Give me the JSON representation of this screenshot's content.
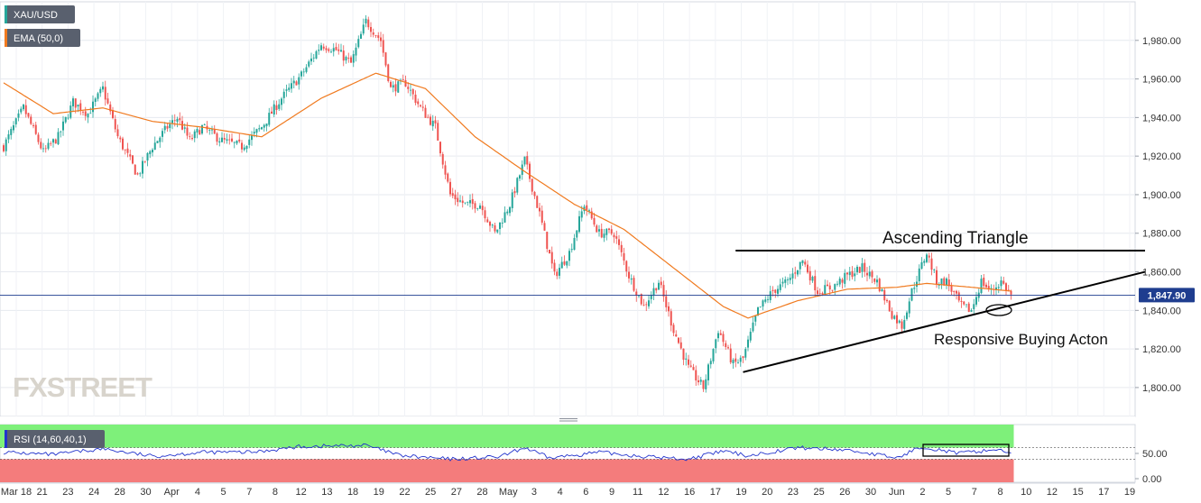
{
  "symbol": "XAU/USD",
  "ema_label": "EMA (50,0)",
  "rsi_label": "RSI (14,60,40,1)",
  "last_price": "1,847.90",
  "watermark": "FXSTREET",
  "annotations": {
    "triangle": "Ascending Triangle",
    "buying": "Responsive Buying Acton"
  },
  "colors": {
    "up": "#26a69a",
    "down": "#ef5350",
    "ema": "#f07a1f",
    "last_price": "#1f3d8f",
    "rsi_line": "#2233cc",
    "rsi_overbought": "#7ef07a",
    "rsi_oversold": "#f47c7c"
  },
  "chart_data": [
    {
      "type": "candlestick",
      "series": [
        {
          "name": "XAU/USD",
          "close_path": [
            {
              "t": 0,
              "v": 1925
            },
            {
              "t": 8,
              "v": 1945
            },
            {
              "t": 16,
              "v": 1922
            },
            {
              "t": 22,
              "v": 1930
            },
            {
              "t": 28,
              "v": 1948
            },
            {
              "t": 34,
              "v": 1942
            },
            {
              "t": 40,
              "v": 1955
            },
            {
              "t": 46,
              "v": 1930
            },
            {
              "t": 54,
              "v": 1910
            },
            {
              "t": 60,
              "v": 1925
            },
            {
              "t": 66,
              "v": 1935
            },
            {
              "t": 70,
              "v": 1940
            },
            {
              "t": 75,
              "v": 1928
            },
            {
              "t": 80,
              "v": 1935
            },
            {
              "t": 88,
              "v": 1928
            },
            {
              "t": 96,
              "v": 1925
            },
            {
              "t": 104,
              "v": 1935
            },
            {
              "t": 112,
              "v": 1950
            },
            {
              "t": 120,
              "v": 1962
            },
            {
              "t": 128,
              "v": 1978
            },
            {
              "t": 134,
              "v": 1975
            },
            {
              "t": 140,
              "v": 1968
            },
            {
              "t": 146,
              "v": 1990
            },
            {
              "t": 152,
              "v": 1980
            },
            {
              "t": 156,
              "v": 1955
            },
            {
              "t": 162,
              "v": 1958
            },
            {
              "t": 168,
              "v": 1945
            },
            {
              "t": 174,
              "v": 1935
            },
            {
              "t": 180,
              "v": 1900
            },
            {
              "t": 186,
              "v": 1895
            },
            {
              "t": 192,
              "v": 1895
            },
            {
              "t": 198,
              "v": 1880
            },
            {
              "t": 204,
              "v": 1895
            },
            {
              "t": 210,
              "v": 1918
            },
            {
              "t": 216,
              "v": 1890
            },
            {
              "t": 222,
              "v": 1858
            },
            {
              "t": 228,
              "v": 1870
            },
            {
              "t": 234,
              "v": 1895
            },
            {
              "t": 240,
              "v": 1880
            },
            {
              "t": 246,
              "v": 1880
            },
            {
              "t": 252,
              "v": 1858
            },
            {
              "t": 258,
              "v": 1842
            },
            {
              "t": 264,
              "v": 1855
            },
            {
              "t": 270,
              "v": 1830
            },
            {
              "t": 276,
              "v": 1810
            },
            {
              "t": 282,
              "v": 1800
            },
            {
              "t": 288,
              "v": 1830
            },
            {
              "t": 294,
              "v": 1812
            },
            {
              "t": 298,
              "v": 1815
            },
            {
              "t": 304,
              "v": 1840
            },
            {
              "t": 310,
              "v": 1850
            },
            {
              "t": 316,
              "v": 1855
            },
            {
              "t": 322,
              "v": 1866
            },
            {
              "t": 328,
              "v": 1850
            },
            {
              "t": 334,
              "v": 1852
            },
            {
              "t": 340,
              "v": 1858
            },
            {
              "t": 346,
              "v": 1862
            },
            {
              "t": 352,
              "v": 1855
            },
            {
              "t": 358,
              "v": 1838
            },
            {
              "t": 362,
              "v": 1832
            },
            {
              "t": 366,
              "v": 1850
            },
            {
              "t": 372,
              "v": 1870
            },
            {
              "t": 376,
              "v": 1855
            },
            {
              "t": 380,
              "v": 1855
            },
            {
              "t": 386,
              "v": 1842
            },
            {
              "t": 390,
              "v": 1840
            },
            {
              "t": 394,
              "v": 1855
            },
            {
              "t": 398,
              "v": 1850
            },
            {
              "t": 402,
              "v": 1855
            },
            {
              "t": 406,
              "v": 1848
            }
          ]
        }
      ],
      "ema": {
        "name": "EMA (50,0)",
        "path": [
          {
            "t": 0,
            "v": 1958
          },
          {
            "t": 20,
            "v": 1942
          },
          {
            "t": 40,
            "v": 1945
          },
          {
            "t": 60,
            "v": 1938
          },
          {
            "t": 80,
            "v": 1935
          },
          {
            "t": 104,
            "v": 1930
          },
          {
            "t": 128,
            "v": 1950
          },
          {
            "t": 150,
            "v": 1963
          },
          {
            "t": 170,
            "v": 1955
          },
          {
            "t": 190,
            "v": 1930
          },
          {
            "t": 210,
            "v": 1912
          },
          {
            "t": 230,
            "v": 1895
          },
          {
            "t": 250,
            "v": 1882
          },
          {
            "t": 270,
            "v": 1862
          },
          {
            "t": 290,
            "v": 1842
          },
          {
            "t": 300,
            "v": 1836
          },
          {
            "t": 320,
            "v": 1845
          },
          {
            "t": 340,
            "v": 1851
          },
          {
            "t": 360,
            "v": 1852
          },
          {
            "t": 372,
            "v": 1854
          },
          {
            "t": 390,
            "v": 1852
          },
          {
            "t": 406,
            "v": 1850
          }
        ]
      },
      "ylim": [
        1785,
        2000
      ],
      "yticks": [
        1800,
        1820,
        1840,
        1860,
        1880,
        1900,
        1920,
        1940,
        1960,
        1980
      ],
      "ytick_labels": [
        "1,800.00",
        "1,820.00",
        "1,840.00",
        "1,860.00",
        "1,880.00",
        "1,900.00",
        "1,920.00",
        "1,940.00",
        "1,960.00",
        "1,980.00"
      ],
      "last_price": 1847.9,
      "trendlines": [
        {
          "name": "triangle-resistance",
          "from": {
            "t": 295,
            "v": 1871
          },
          "to": {
            "t": 460,
            "v": 1871
          }
        },
        {
          "name": "triangle-support",
          "from": {
            "t": 298,
            "v": 1808
          },
          "to": {
            "t": 460,
            "v": 1860
          }
        }
      ],
      "grid": true
    },
    {
      "type": "line",
      "series": [
        {
          "name": "RSI (14,60,40,1)",
          "path": [
            {
              "t": 0,
              "v": 52
            },
            {
              "t": 20,
              "v": 48
            },
            {
              "t": 40,
              "v": 58
            },
            {
              "t": 60,
              "v": 45
            },
            {
              "t": 80,
              "v": 52
            },
            {
              "t": 100,
              "v": 52
            },
            {
              "t": 120,
              "v": 62
            },
            {
              "t": 146,
              "v": 64
            },
            {
              "t": 160,
              "v": 46
            },
            {
              "t": 180,
              "v": 40
            },
            {
              "t": 200,
              "v": 44
            },
            {
              "t": 210,
              "v": 60
            },
            {
              "t": 220,
              "v": 42
            },
            {
              "t": 240,
              "v": 52
            },
            {
              "t": 260,
              "v": 44
            },
            {
              "t": 276,
              "v": 40
            },
            {
              "t": 290,
              "v": 54
            },
            {
              "t": 300,
              "v": 46
            },
            {
              "t": 320,
              "v": 60
            },
            {
              "t": 340,
              "v": 56
            },
            {
              "t": 360,
              "v": 42
            },
            {
              "t": 370,
              "v": 62
            },
            {
              "t": 385,
              "v": 50
            },
            {
              "t": 400,
              "v": 57
            },
            {
              "t": 406,
              "v": 52
            }
          ]
        }
      ],
      "levels": [
        60,
        40
      ],
      "ylim": [
        0,
        100
      ],
      "yticks": [
        0,
        50
      ],
      "ytick_labels": [
        "0.00",
        "50.00"
      ]
    }
  ],
  "x_axis": {
    "labels": [
      "Mar 18",
      "21",
      "23",
      "24",
      "28",
      "30",
      "Apr",
      "4",
      "5",
      "7",
      "8",
      "12",
      "13",
      "18",
      "19",
      "22",
      "25",
      "27",
      "28",
      "May",
      "3",
      "4",
      "6",
      "9",
      "11",
      "12",
      "16",
      "17",
      "19",
      "20",
      "23",
      "25",
      "26",
      "30",
      "Jun",
      "2",
      "5",
      "7",
      "8",
      "10",
      "12",
      "15",
      "17",
      "19"
    ]
  }
}
